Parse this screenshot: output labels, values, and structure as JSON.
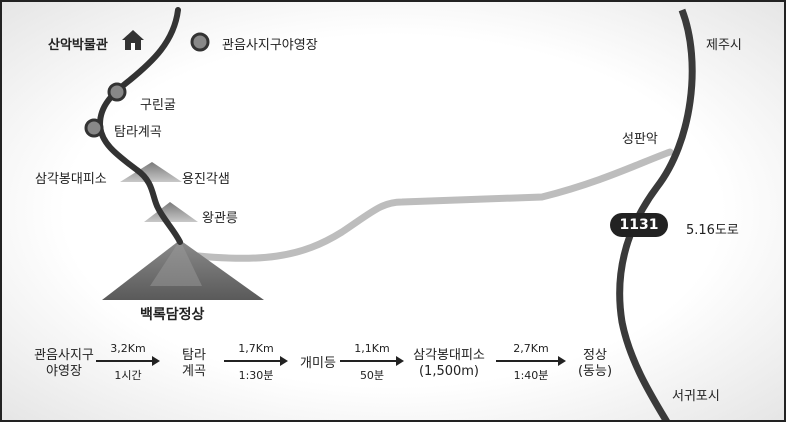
{
  "places": {
    "museum": "산악박물관",
    "camp_legend": "관음사지구야영장",
    "gurinkul": "구린굴",
    "tamra_valley": "탐라계곡",
    "shelter": "삼각봉대피소",
    "yongjin": "용진각샘",
    "wanggwan": "왕관릉",
    "summit": "백록담정상",
    "jeju_city": "제주시",
    "seongpanak": "성판악",
    "road_name": "5.16도로",
    "seogwipo": "서귀포시"
  },
  "road_badge": "1131",
  "icons": {
    "museum": "house-icon",
    "camp": "circle-marker-icon"
  },
  "colors": {
    "trail": "#333333",
    "road": "#bdbdbd",
    "mountain": "#6e6e6e"
  },
  "route": {
    "steps": [
      "관음사지구\n야영장",
      "탐라\n계곡",
      "개미등",
      "삼각봉대피소\n(1,500m)",
      "정상\n(동능)"
    ],
    "segments": [
      {
        "distance": "3,2Km",
        "time": "1시간"
      },
      {
        "distance": "1,7Km",
        "time": "1:30분"
      },
      {
        "distance": "1,1Km",
        "time": "50분"
      },
      {
        "distance": "2,7Km",
        "time": "1:40분"
      }
    ]
  }
}
